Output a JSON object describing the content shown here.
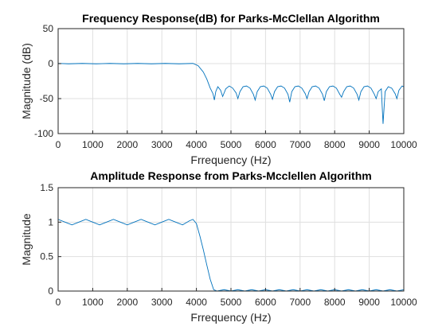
{
  "chart_data": [
    {
      "type": "line",
      "title": "Frequency Response(dB) for Parks-McClellan Algorithm",
      "xlabel": "Frrequency (Hz)",
      "ylabel": "Magnitude (dB)",
      "xlim": [
        0,
        10000
      ],
      "ylim": [
        -100,
        50
      ],
      "xticks": [
        0,
        1000,
        2000,
        3000,
        4000,
        5000,
        6000,
        7000,
        8000,
        9000,
        10000
      ],
      "yticks": [
        -100,
        -50,
        0,
        50
      ],
      "grid": true,
      "series": [
        {
          "color": "#0072bd",
          "x": [
            0,
            300,
            700,
            1100,
            1500,
            1900,
            2300,
            2700,
            3100,
            3500,
            3900,
            4050,
            4200,
            4300,
            4400,
            4480,
            4520,
            4560,
            4620,
            4700,
            4760,
            4850,
            4950,
            5050,
            5150,
            5200,
            5260,
            5350,
            5450,
            5550,
            5650,
            5700,
            5760,
            5850,
            5950,
            6050,
            6150,
            6200,
            6260,
            6350,
            6450,
            6550,
            6650,
            6700,
            6760,
            6850,
            6950,
            7050,
            7150,
            7200,
            7260,
            7350,
            7450,
            7550,
            7650,
            7700,
            7760,
            7850,
            7950,
            8050,
            8150,
            8200,
            8260,
            8350,
            8450,
            8550,
            8650,
            8700,
            8760,
            8850,
            8950,
            9050,
            9150,
            9200,
            9260,
            9350,
            9400,
            9460,
            9550,
            9650,
            9750,
            9800,
            9860,
            9950,
            10000
          ],
          "y": [
            0.4,
            -0.3,
            0.3,
            -0.3,
            0.3,
            -0.3,
            0.3,
            -0.3,
            0.3,
            -0.3,
            0.3,
            -3,
            -12,
            -22,
            -35,
            -43,
            -52,
            -40,
            -33,
            -38,
            -47,
            -36,
            -32,
            -35,
            -42,
            -50,
            -40,
            -33,
            -32,
            -35,
            -44,
            -52,
            -40,
            -33,
            -32,
            -35,
            -44,
            -51,
            -40,
            -33,
            -32,
            -35,
            -44,
            -55,
            -40,
            -33,
            -32,
            -35,
            -43,
            -50,
            -40,
            -33,
            -32,
            -35,
            -44,
            -53,
            -40,
            -33,
            -32,
            -35,
            -44,
            -48,
            -40,
            -33,
            -32,
            -35,
            -44,
            -52,
            -40,
            -33,
            -32,
            -35,
            -44,
            -50,
            -40,
            -36,
            -86,
            -40,
            -33,
            -35,
            -43,
            -50,
            -38,
            -32,
            -33
          ]
        }
      ]
    },
    {
      "type": "line",
      "title": "Amplitude Response from Parks-Mcclellen Algorithm",
      "xlabel": "Frrequency (Hz)",
      "ylabel": "Magnitude",
      "xlim": [
        0,
        10000
      ],
      "ylim": [
        0,
        1.5
      ],
      "xticks": [
        0,
        1000,
        2000,
        3000,
        4000,
        5000,
        6000,
        7000,
        8000,
        9000,
        10000
      ],
      "yticks": [
        0,
        0.5,
        1,
        1.5
      ],
      "grid": true,
      "series": [
        {
          "color": "#0072bd",
          "x": [
            0,
            200,
            400,
            600,
            800,
            1000,
            1200,
            1400,
            1600,
            1800,
            2000,
            2200,
            2400,
            2600,
            2800,
            3000,
            3200,
            3400,
            3600,
            3800,
            3900,
            4000,
            4100,
            4200,
            4300,
            4400,
            4500,
            4600,
            4800,
            5000,
            5200,
            5400,
            5600,
            5800,
            6000,
            6200,
            6400,
            6600,
            6800,
            7000,
            7200,
            7400,
            7600,
            7800,
            8000,
            8200,
            8400,
            8600,
            8800,
            9000,
            9200,
            9400,
            9600,
            9800,
            10000
          ],
          "y": [
            1.04,
            1.0,
            0.96,
            1.0,
            1.04,
            1.0,
            0.96,
            1.0,
            1.04,
            1.0,
            0.96,
            1.0,
            1.04,
            1.0,
            0.96,
            1.0,
            1.04,
            1.0,
            0.96,
            1.02,
            1.04,
            0.98,
            0.8,
            0.6,
            0.38,
            0.17,
            0.02,
            0.0,
            0.02,
            0.0,
            0.02,
            0.0,
            0.02,
            0.0,
            0.02,
            0.0,
            0.02,
            0.0,
            0.02,
            0.0,
            0.02,
            0.0,
            0.02,
            0.0,
            0.02,
            0.0,
            0.02,
            0.0,
            0.02,
            0.0,
            0.02,
            0.0,
            0.02,
            0.0,
            0.02
          ]
        }
      ]
    }
  ]
}
